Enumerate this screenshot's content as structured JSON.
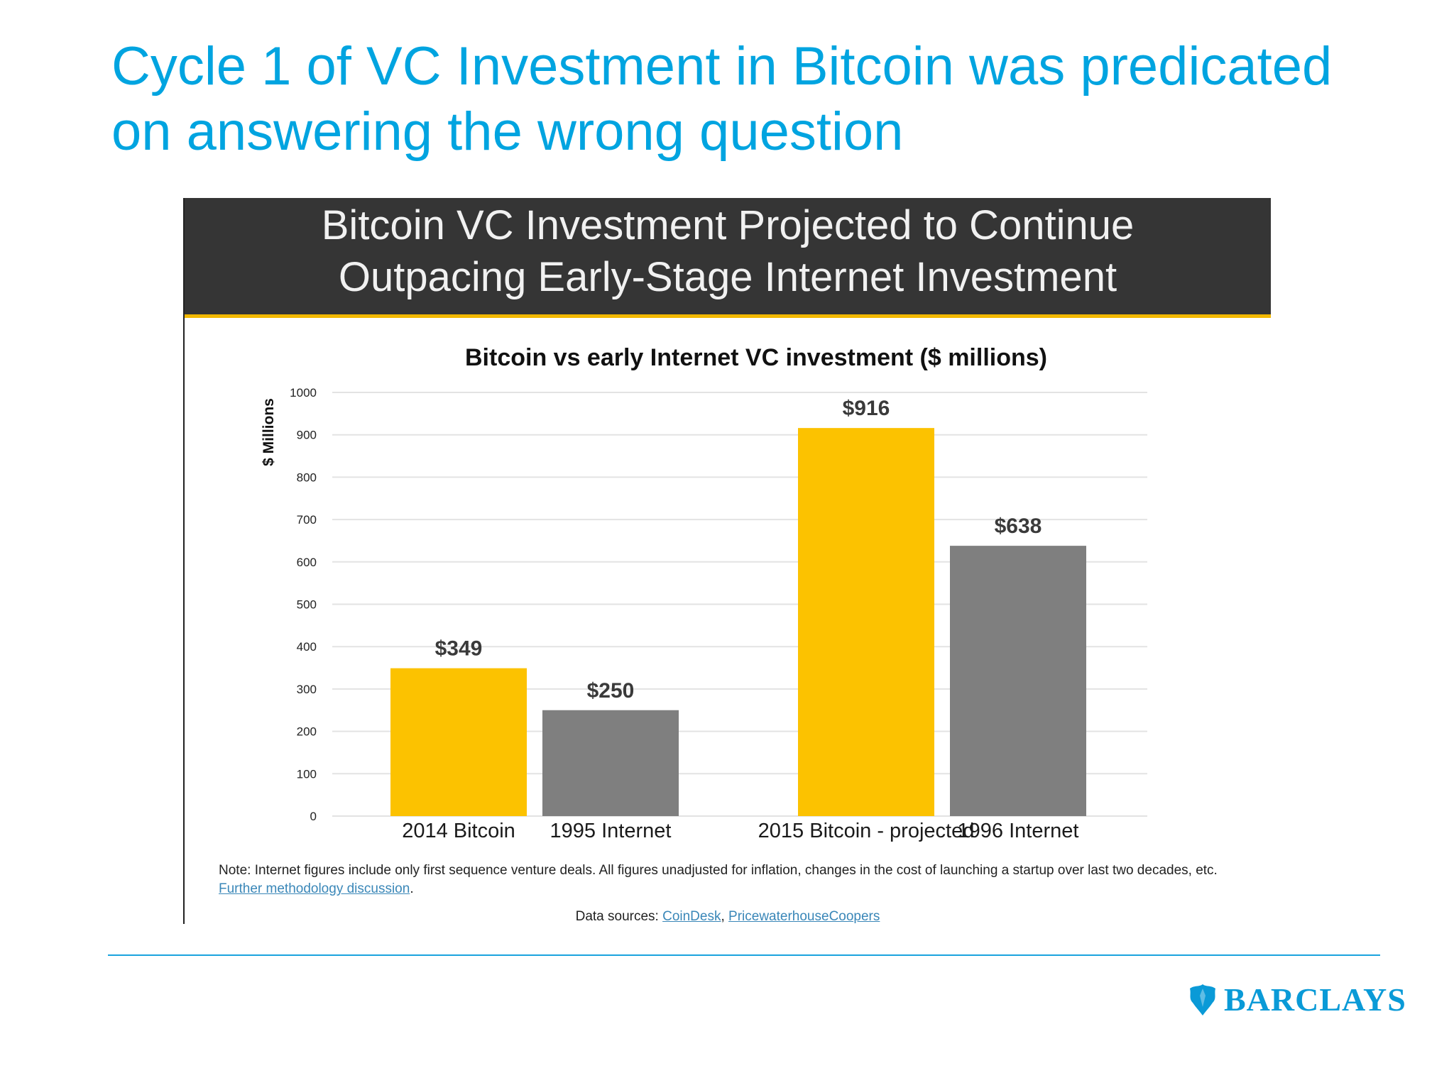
{
  "slide": {
    "title_line1": "Cycle 1 of VC Investment in Bitcoin was predicated",
    "title_line2": "on answering the wrong question"
  },
  "figure": {
    "banner_line1": "Bitcoin VC Investment Projected to Continue",
    "banner_line2": "Outpacing Early-Stage Internet Investment",
    "note_text": "Note: Internet figures include only first sequence venture deals. All figures unadjusted for inflation, changes in the cost of launching a startup over last two decades, etc.",
    "note_link": "Further methodology discussion",
    "sources_label": "Data sources:",
    "source1": "CoinDesk",
    "source2": "PricewaterhouseCoopers"
  },
  "chart_data": {
    "type": "bar",
    "title": "Bitcoin vs early Internet VC investment ($ millions)",
    "xlabel": "",
    "ylabel": "$ Millions",
    "ylim": [
      0,
      1000
    ],
    "yticks": [
      0,
      100,
      200,
      300,
      400,
      500,
      600,
      700,
      800,
      900,
      1000
    ],
    "grid": true,
    "categories": [
      "2014 Bitcoin",
      "1995 Internet",
      "2015 Bitcoin - projected",
      "1996 Internet"
    ],
    "values": [
      349,
      250,
      916,
      638
    ],
    "data_labels": [
      "$349",
      "$250",
      "$916",
      "$638"
    ],
    "groups": [
      [
        "2014 Bitcoin",
        "1995 Internet"
      ],
      [
        "2015 Bitcoin - projected",
        "1996 Internet"
      ]
    ]
  },
  "colors": {
    "bitcoin": "#fcc200",
    "internet": "#7f7f7f",
    "grid": "#e3e3e3",
    "title_blue": "#00a4e0",
    "banner": "#353535",
    "banner_rule": "#f2b800"
  },
  "branding": {
    "logo_icon": "eagle-icon",
    "logo_text": "BARCLAYS"
  }
}
